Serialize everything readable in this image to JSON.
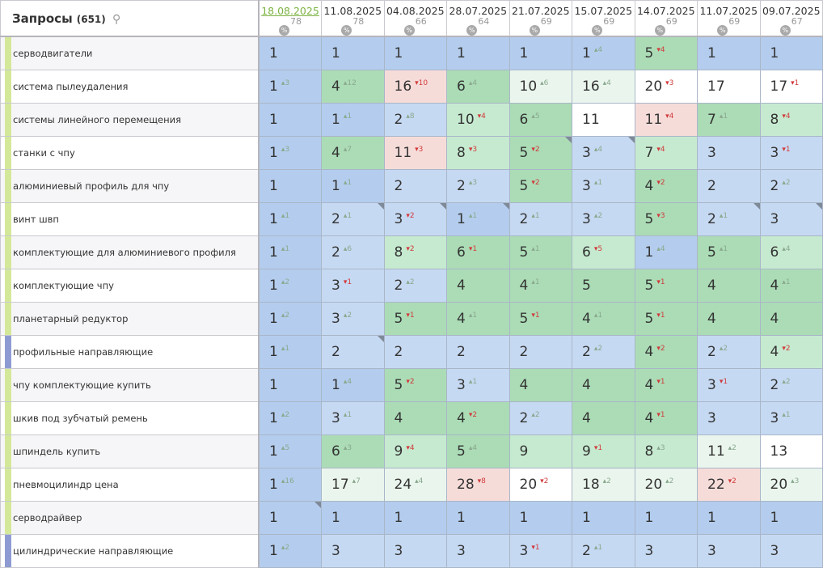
{
  "header": {
    "title": "Запросы",
    "count": "(651)",
    "search_icon": "search-icon",
    "dates": [
      {
        "label": "18.08.2025",
        "pct": "78",
        "current": true
      },
      {
        "label": "11.08.2025",
        "pct": "78"
      },
      {
        "label": "04.08.2025",
        "pct": "66"
      },
      {
        "label": "28.07.2025",
        "pct": "64"
      },
      {
        "label": "21.07.2025",
        "pct": "69"
      },
      {
        "label": "15.07.2025",
        "pct": "69"
      },
      {
        "label": "14.07.2025",
        "pct": "69"
      },
      {
        "label": "11.07.2025",
        "pct": "69"
      },
      {
        "label": "09.07.2025",
        "pct": "67"
      }
    ]
  },
  "colors": {
    "B": "#b4cdee",
    "LB": "#c6d9f2",
    "G": "#abdcb6",
    "LG": "#c6ead0",
    "VLG": "#eaf6ed",
    "P": "#f6dcd9",
    "W": "#ffffff",
    "mark_green": "#d4e89a",
    "mark_blue": "#8e9bd3",
    "delta_up": "#8aa88e",
    "delta_down": "#d13b3b"
  },
  "rows": [
    {
      "query": "серводвигатели",
      "mark": "mark_green",
      "cells": [
        [
          1,
          0,
          "B"
        ],
        [
          1,
          0,
          "B"
        ],
        [
          1,
          0,
          "B"
        ],
        [
          1,
          0,
          "B"
        ],
        [
          1,
          0,
          "B"
        ],
        [
          1,
          4,
          "B"
        ],
        [
          5,
          -4,
          "G"
        ],
        [
          1,
          0,
          "B"
        ],
        [
          1,
          0,
          "B"
        ]
      ]
    },
    {
      "query": "система пылеудаления",
      "mark": "mark_green",
      "cells": [
        [
          1,
          3,
          "B"
        ],
        [
          4,
          12,
          "G"
        ],
        [
          16,
          -10,
          "P"
        ],
        [
          6,
          4,
          "G"
        ],
        [
          10,
          6,
          "VLG"
        ],
        [
          16,
          4,
          "VLG"
        ],
        [
          20,
          -3,
          "W"
        ],
        [
          17,
          0,
          "W"
        ],
        [
          17,
          -1,
          "W"
        ]
      ]
    },
    {
      "query": "системы линейного перемещения",
      "mark": "mark_green",
      "cells": [
        [
          1,
          0,
          "B"
        ],
        [
          1,
          1,
          "B"
        ],
        [
          2,
          8,
          "LB"
        ],
        [
          10,
          -4,
          "LG"
        ],
        [
          6,
          5,
          "G"
        ],
        [
          11,
          0,
          "W"
        ],
        [
          11,
          -4,
          "P"
        ],
        [
          7,
          1,
          "G"
        ],
        [
          8,
          -4,
          "LG"
        ]
      ]
    },
    {
      "query": "станки с чпу",
      "mark": "mark_green",
      "cells": [
        [
          1,
          3,
          "B"
        ],
        [
          4,
          7,
          "G"
        ],
        [
          11,
          -3,
          "P"
        ],
        [
          8,
          -3,
          "LG"
        ],
        [
          5,
          -2,
          "G",
          1
        ],
        [
          3,
          4,
          "LB",
          1
        ],
        [
          7,
          -4,
          "LG"
        ],
        [
          3,
          0,
          "LB"
        ],
        [
          3,
          -1,
          "LB"
        ]
      ]
    },
    {
      "query": "алюминиевый профиль для чпу",
      "mark": "mark_green",
      "cells": [
        [
          1,
          0,
          "B"
        ],
        [
          1,
          1,
          "B"
        ],
        [
          2,
          0,
          "LB"
        ],
        [
          2,
          3,
          "LB"
        ],
        [
          5,
          -2,
          "G"
        ],
        [
          3,
          1,
          "LB"
        ],
        [
          4,
          -2,
          "G"
        ],
        [
          2,
          0,
          "LB"
        ],
        [
          2,
          2,
          "LB"
        ]
      ]
    },
    {
      "query": "винт швп",
      "mark": "mark_green",
      "cells": [
        [
          1,
          1,
          "B"
        ],
        [
          2,
          1,
          "LB",
          1
        ],
        [
          3,
          -2,
          "LB",
          1
        ],
        [
          1,
          1,
          "B",
          1
        ],
        [
          2,
          1,
          "LB"
        ],
        [
          3,
          2,
          "LB"
        ],
        [
          5,
          -3,
          "G"
        ],
        [
          2,
          1,
          "LB",
          1
        ],
        [
          3,
          0,
          "LB",
          1
        ]
      ]
    },
    {
      "query": "комплектующие для алюминиевого профиля",
      "mark": "mark_green",
      "cells": [
        [
          1,
          1,
          "B"
        ],
        [
          2,
          6,
          "LB"
        ],
        [
          8,
          -2,
          "LG"
        ],
        [
          6,
          -1,
          "G"
        ],
        [
          5,
          1,
          "G"
        ],
        [
          6,
          -5,
          "LG"
        ],
        [
          1,
          4,
          "B"
        ],
        [
          5,
          1,
          "G"
        ],
        [
          6,
          4,
          "LG"
        ]
      ]
    },
    {
      "query": "комплектующие чпу",
      "mark": "mark_green",
      "cells": [
        [
          1,
          2,
          "B"
        ],
        [
          3,
          -1,
          "LB"
        ],
        [
          2,
          2,
          "LB"
        ],
        [
          4,
          0,
          "G"
        ],
        [
          4,
          1,
          "G"
        ],
        [
          5,
          0,
          "G"
        ],
        [
          5,
          -1,
          "G"
        ],
        [
          4,
          0,
          "G"
        ],
        [
          4,
          1,
          "G"
        ]
      ]
    },
    {
      "query": "планетарный редуктор",
      "mark": "mark_green",
      "cells": [
        [
          1,
          2,
          "B"
        ],
        [
          3,
          2,
          "LB"
        ],
        [
          5,
          -1,
          "G"
        ],
        [
          4,
          1,
          "G"
        ],
        [
          5,
          -1,
          "G"
        ],
        [
          4,
          1,
          "G"
        ],
        [
          5,
          -1,
          "G"
        ],
        [
          4,
          0,
          "G"
        ],
        [
          4,
          0,
          "G"
        ]
      ]
    },
    {
      "query": "профильные направляющие",
      "mark": "mark_blue",
      "cells": [
        [
          1,
          1,
          "B"
        ],
        [
          2,
          0,
          "LB",
          1
        ],
        [
          2,
          0,
          "LB"
        ],
        [
          2,
          0,
          "LB"
        ],
        [
          2,
          0,
          "LB"
        ],
        [
          2,
          2,
          "LB"
        ],
        [
          4,
          -2,
          "G"
        ],
        [
          2,
          2,
          "LB"
        ],
        [
          4,
          -2,
          "LG"
        ]
      ]
    },
    {
      "query": "чпу комплектующие купить",
      "mark": "mark_green",
      "cells": [
        [
          1,
          0,
          "B"
        ],
        [
          1,
          4,
          "B"
        ],
        [
          5,
          -2,
          "G"
        ],
        [
          3,
          1,
          "LB"
        ],
        [
          4,
          0,
          "G"
        ],
        [
          4,
          0,
          "G"
        ],
        [
          4,
          -1,
          "G"
        ],
        [
          3,
          -1,
          "LB"
        ],
        [
          2,
          2,
          "LB"
        ]
      ]
    },
    {
      "query": "шкив под зубчатый ремень",
      "mark": "mark_green",
      "cells": [
        [
          1,
          2,
          "B"
        ],
        [
          3,
          1,
          "LB"
        ],
        [
          4,
          0,
          "G"
        ],
        [
          4,
          -2,
          "G"
        ],
        [
          2,
          2,
          "LB"
        ],
        [
          4,
          0,
          "G"
        ],
        [
          4,
          -1,
          "G"
        ],
        [
          3,
          0,
          "LB"
        ],
        [
          3,
          1,
          "LB"
        ]
      ]
    },
    {
      "query": "шпиндель купить",
      "mark": "mark_green",
      "cells": [
        [
          1,
          5,
          "B"
        ],
        [
          6,
          3,
          "G"
        ],
        [
          9,
          -4,
          "LG"
        ],
        [
          5,
          4,
          "G"
        ],
        [
          9,
          0,
          "LG"
        ],
        [
          9,
          -1,
          "LG"
        ],
        [
          8,
          3,
          "LG"
        ],
        [
          11,
          2,
          "VLG"
        ],
        [
          13,
          0,
          "W"
        ]
      ]
    },
    {
      "query": "пневмоцилиндр цена",
      "mark": "mark_green",
      "cells": [
        [
          1,
          16,
          "B"
        ],
        [
          17,
          7,
          "VLG"
        ],
        [
          24,
          4,
          "VLG"
        ],
        [
          28,
          -8,
          "P"
        ],
        [
          20,
          -2,
          "W"
        ],
        [
          18,
          2,
          "VLG"
        ],
        [
          20,
          2,
          "VLG"
        ],
        [
          22,
          -2,
          "P"
        ],
        [
          20,
          3,
          "VLG"
        ]
      ]
    },
    {
      "query": "серводрайвер",
      "mark": "mark_green",
      "cells": [
        [
          1,
          0,
          "B",
          1
        ],
        [
          1,
          0,
          "B"
        ],
        [
          1,
          0,
          "B"
        ],
        [
          1,
          0,
          "B"
        ],
        [
          1,
          0,
          "B"
        ],
        [
          1,
          0,
          "B"
        ],
        [
          1,
          0,
          "B"
        ],
        [
          1,
          0,
          "B"
        ],
        [
          1,
          0,
          "B"
        ]
      ]
    },
    {
      "query": "цилиндрические направляющие",
      "mark": "mark_blue",
      "cells": [
        [
          1,
          2,
          "B"
        ],
        [
          3,
          0,
          "LB"
        ],
        [
          3,
          0,
          "LB"
        ],
        [
          3,
          0,
          "LB"
        ],
        [
          3,
          -1,
          "LB"
        ],
        [
          2,
          1,
          "LB"
        ],
        [
          3,
          0,
          "LB"
        ],
        [
          3,
          0,
          "LB"
        ],
        [
          3,
          0,
          "LB"
        ]
      ]
    }
  ]
}
